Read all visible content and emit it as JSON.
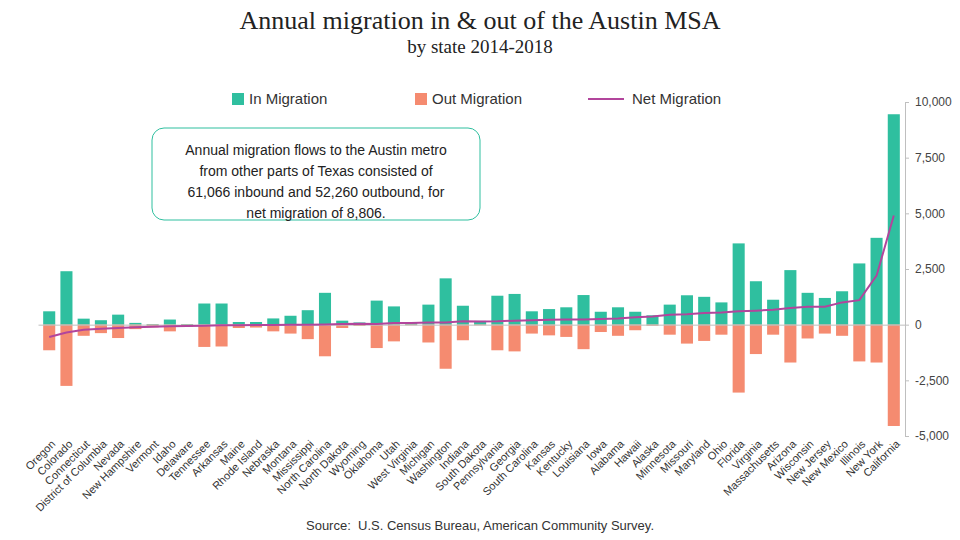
{
  "chart_data": {
    "type": "bar",
    "title": "Annual migration in & out of the Austin MSA",
    "subtitle": "by state 2014-2018",
    "annotation": [
      "Annual migration flows to the Austin metro",
      "from other parts of Texas consisted of",
      "61,066 inbound and 52,260 outbound, for",
      "net migration of 8,806."
    ],
    "source": "Source:  U.S. Census Bureau, American Community Survey.",
    "legend": "top",
    "categories": [
      "Oregon",
      "Colorado",
      "Connecticut",
      "District of Columbia",
      "Nevada",
      "New Hampshire",
      "Vermont",
      "Idaho",
      "Delaware",
      "Tennessee",
      "Arkansas",
      "Maine",
      "Rhode Island",
      "Nebraska",
      "Montana",
      "Mississippi",
      "North Carolina",
      "North Dakota",
      "Wyoming",
      "Oklahoma",
      "Utah",
      "West Virginia",
      "Michigan",
      "Washington",
      "Indiana",
      "South Dakota",
      "Pennsylvania",
      "Georgia",
      "South Carolina",
      "Kansas",
      "Kentucky",
      "Louisiana",
      "Iowa",
      "Alabama",
      "Hawaii",
      "Alaska",
      "Minnesota",
      "Missouri",
      "Maryland",
      "Ohio",
      "Florida",
      "Virginia",
      "Massachusetts",
      "Arizona",
      "Wisconsin",
      "New Jersey",
      "New Mexico",
      "Illinois",
      "New York",
      "California"
    ],
    "series": [
      {
        "name": "In Migration",
        "type": "bar",
        "color": "#2fbf9f",
        "values": [
          600,
          2400,
          270,
          200,
          450,
          80,
          30,
          230,
          30,
          950,
          950,
          120,
          120,
          280,
          400,
          650,
          1430,
          180,
          100,
          1080,
          820,
          100,
          900,
          2080,
          850,
          170,
          1300,
          1380,
          600,
          700,
          780,
          1330,
          580,
          780,
          580,
          420,
          900,
          1320,
          1250,
          1000,
          3650,
          1950,
          1120,
          2450,
          1430,
          1200,
          1500,
          2750,
          3900,
          9450
        ]
      },
      {
        "name": "Out Migration",
        "type": "bar",
        "color": "#f58b70",
        "values": [
          -1150,
          -2750,
          -500,
          -380,
          -600,
          -200,
          -120,
          -300,
          -90,
          -1000,
          -980,
          -150,
          -130,
          -300,
          -400,
          -650,
          -1420,
          -150,
          -60,
          -1050,
          -750,
          -30,
          -800,
          -1980,
          -700,
          -30,
          -1150,
          -1200,
          -400,
          -480,
          -550,
          -1100,
          -330,
          -500,
          -250,
          -50,
          -450,
          -850,
          -730,
          -450,
          -3050,
          -1320,
          -450,
          -1700,
          -620,
          -400,
          -500,
          -1650,
          -1700,
          -4550
        ]
      },
      {
        "name": "Net Migration",
        "type": "line",
        "color": "#b2459c",
        "values": [
          -550,
          -350,
          -230,
          -180,
          -150,
          -120,
          -90,
          -70,
          -60,
          -50,
          -30,
          -30,
          -10,
          -20,
          0,
          0,
          10,
          30,
          40,
          30,
          70,
          70,
          100,
          100,
          150,
          140,
          150,
          180,
          200,
          220,
          230,
          230,
          250,
          280,
          330,
          370,
          450,
          470,
          520,
          550,
          600,
          630,
          670,
          750,
          800,
          810,
          1000,
          1100,
          2200,
          4900
        ]
      }
    ],
    "ylim": [
      -5000,
      10000
    ],
    "yticks": [
      {
        "value": -5000,
        "label": "-5,000"
      },
      {
        "value": -2500,
        "label": "-2,500"
      },
      0,
      {
        "value": 2500,
        "label": "2,500"
      },
      {
        "value": 5000,
        "label": "5,000"
      },
      {
        "value": 7500,
        "label": "7,500"
      },
      {
        "value": 10000,
        "label": "10,000"
      }
    ],
    "grid": false
  }
}
